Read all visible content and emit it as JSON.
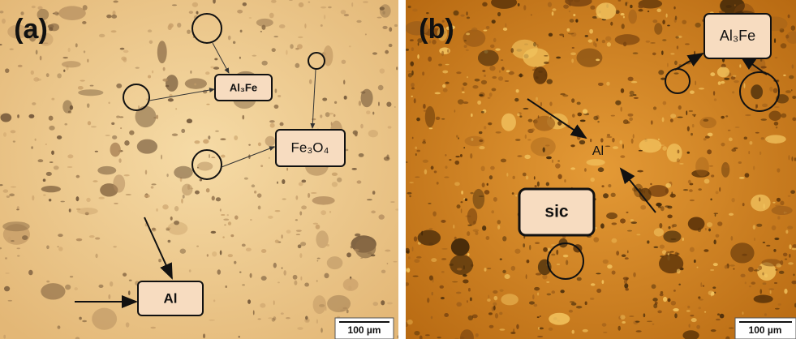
{
  "panels": [
    {
      "label": "(a)",
      "annotations": [
        "Al₃Fe",
        "Fe₃O₄",
        "Al"
      ],
      "scale_bar": "100 µm"
    },
    {
      "label": "(b)",
      "annotations": [
        "Al₃Fe",
        "Al",
        "sic"
      ],
      "scale_bar": "100 µm"
    }
  ]
}
